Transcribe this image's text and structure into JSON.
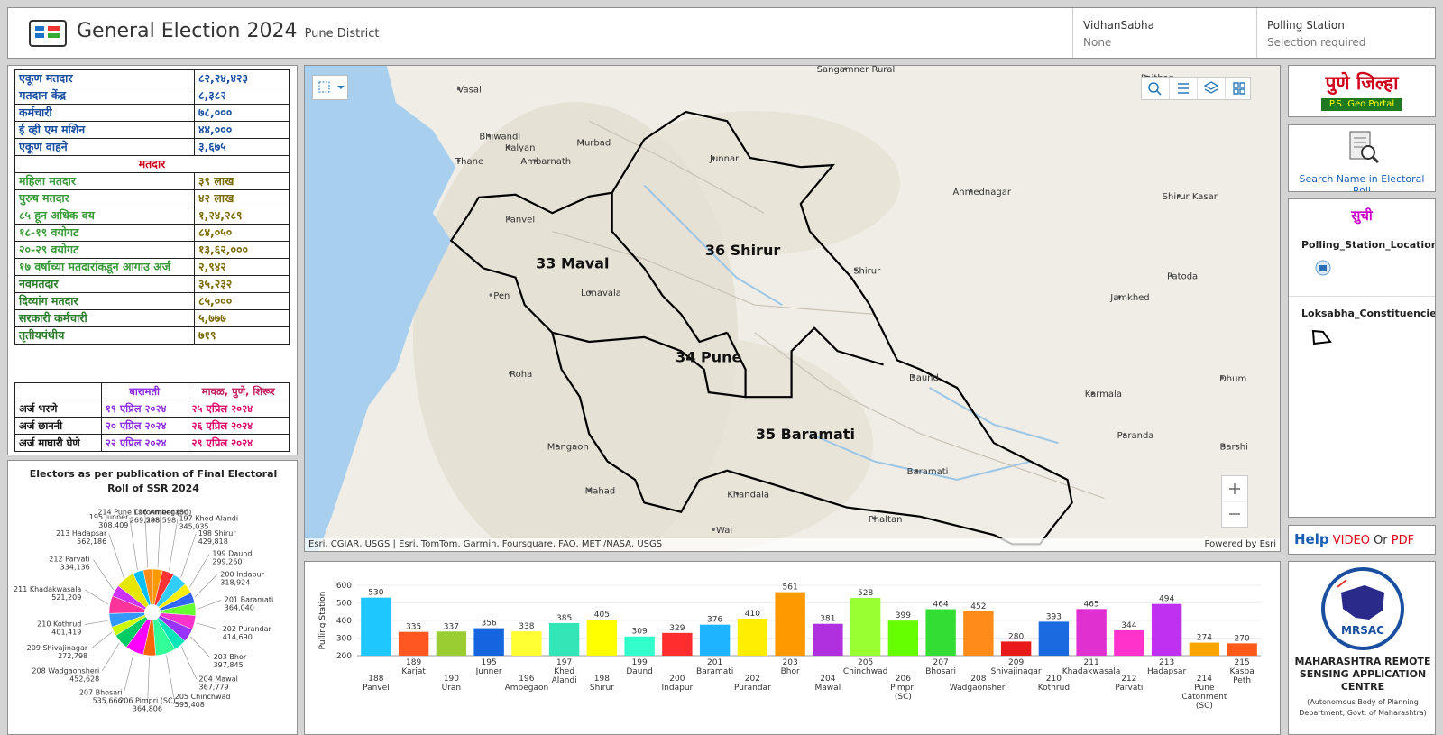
{
  "header": {
    "title": "General Election 2024",
    "subtitle": "Pune District",
    "fields": [
      {
        "label": "VidhanSabha",
        "value": "None"
      },
      {
        "label": "Polling Station",
        "value": "Selection required"
      }
    ]
  },
  "stats_table": {
    "rows": [
      [
        "एकूण मतदार",
        "८२,२४,४२३"
      ],
      [
        "मतदान केंद्र",
        "८,३८२"
      ],
      [
        "कर्मचारी",
        "७८,०००"
      ],
      [
        "ई व्ही एम मशिन",
        "४४,०००"
      ],
      [
        "एकूण वाहने",
        "३,६७५"
      ],
      [
        "मतदार"
      ],
      [
        "महिला मतदार",
        "३९ लाख"
      ],
      [
        "पुरुष मतदार",
        "४२ लाख"
      ],
      [
        "८५ हून अधिक वय",
        "१,२४,२८९"
      ],
      [
        "१८-१९ वयोगट",
        "८४,०५०"
      ],
      [
        "२०-२९ वयोगट",
        "१३,६२,०००"
      ],
      [
        "१७ वर्षाच्या मतदारांकडून आगाउ अर्ज",
        "२,९४२"
      ],
      [
        "नवमतदार",
        "३५,२३२"
      ],
      [
        "दिव्यांग मतदार",
        "८५,०००"
      ],
      [
        "सरकारी कर्मचारी",
        "५,७७७"
      ],
      [
        "तृतीयपंथीय",
        "७१९"
      ]
    ]
  },
  "schedule_table": {
    "columns": [
      "बारामती",
      "मावळ, पुणे, शिरूर"
    ],
    "rows": [
      [
        "अर्ज भरणे",
        "१९ एप्रिल २०२४",
        "२५ एप्रिल २०२४"
      ],
      [
        "अर्ज छाननी",
        "२० एप्रिल २०२४",
        "२६ एप्रिल २०२४"
      ],
      [
        "अर्ज माघारी घेणे",
        "२२ एप्रिल २०२४",
        "२९ एप्रिल २०२४"
      ]
    ]
  },
  "map": {
    "constituencies": [
      "33 Maval",
      "36 Shirur",
      "34 Pune",
      "35 Baramati"
    ],
    "places": [
      "Sangamner Rural",
      "Paithan",
      "Vasai",
      "Bhiwandi",
      "Kalyan",
      "Murbad",
      "Ambarnath",
      "Thane",
      "Junnar",
      "Ahmednagar",
      "Shirur Kasar",
      "Panvel",
      "Shirur",
      "Patoda",
      "Jamkhed",
      "Pen",
      "Lonavala",
      "Roha",
      "Daund",
      "Dhum",
      "Karmala",
      "Paranda",
      "Barshi",
      "Mangaon",
      "Baramati",
      "Mahad",
      "Khandala",
      "Phaltan",
      "Wai"
    ],
    "attribution": "Esri, CGIAR, USGS | Esri, TomTom, Garmin, Foursquare, FAO, METI/NASA, USGS",
    "powered_by": "Powered by Esri"
  },
  "sidebar": {
    "district": "पुणे जिल्हा",
    "portal": "P.S. Geo Portal",
    "search": "Search Name in Electoral Roll",
    "list_title": "सुची",
    "layers": [
      "Polling_Station_Location",
      "Loksabha_Constituencies"
    ],
    "help": "Help",
    "video": "VIDEO",
    "or": "Or",
    "pdf": "PDF",
    "logo_text": "MRSAC",
    "org": "MAHARASHTRA REMOTE SENSING APPLICATION CENTRE",
    "org_note": "(Autonomous Body of Planning Department, Govt. of Maharashtra)"
  },
  "chart_data": [
    {
      "type": "pie",
      "title": "Electors as per publication of  Final Electoral Roll of SSR 2024",
      "categories": [
        "196 Ambegaon",
        "197 Khed Alandi",
        "198 Shirur",
        "199 Daund",
        "200 Indapur",
        "201 Baramati",
        "202 Purandar",
        "203 Bhor",
        "204 Mawal",
        "205 Chinchwad",
        "206 Pimpri (SC)",
        "207 Bhosari",
        "208 Wadgaonsheri",
        "209 Shivajinagar",
        "210 Kothrud",
        "211 Khadakwasala",
        "212 Parvati",
        "213 Hadapsar",
        "195 Junner",
        "214 Pune Catonment (SC)"
      ],
      "values": [
        298598,
        345035,
        429818,
        299260,
        318924,
        364040,
        414690,
        397845,
        367779,
        595408,
        364806,
        535666,
        452628,
        272798,
        401419,
        521209,
        334136,
        562186,
        308409,
        269588
      ],
      "value_labels": [
        "298,598",
        "345,035",
        "429,818",
        "299,260",
        "318,924",
        "364,040",
        "414,690",
        "397,845",
        "367,779",
        "595,408",
        "364,806",
        "535,666",
        "452,628",
        "272,798",
        "401,419",
        "521,209",
        "334,136",
        "562,186",
        "308,409",
        "269,588"
      ],
      "colors": [
        "#ff9900",
        "#ff3333",
        "#33ccff",
        "#ffee00",
        "#3366ff",
        "#66ff33",
        "#ff33cc",
        "#9933ff",
        "#00e6b8",
        "#33ff99",
        "#ff6600",
        "#ff00ff",
        "#00cc66",
        "#ccff00",
        "#3399ff",
        "#ff3399",
        "#cc33ff",
        "#e6e600",
        "#00bfff",
        "#ff8c1a"
      ]
    },
    {
      "type": "bar",
      "ylabel": "Pulling Station",
      "ylim": [
        200,
        600
      ],
      "yticks": [
        200,
        300,
        400,
        500,
        600
      ],
      "grid": true,
      "categories": [
        [
          "188",
          "Panvel"
        ],
        [
          "189",
          "Karjat"
        ],
        [
          "190",
          "Uran"
        ],
        [
          "195",
          "Junner"
        ],
        [
          "196",
          "Ambegaon"
        ],
        [
          "197",
          "Khed",
          "Alandi"
        ],
        [
          "198",
          "Shirur"
        ],
        [
          "199",
          "Daund"
        ],
        [
          "200",
          "Indapur"
        ],
        [
          "201",
          "Baramati"
        ],
        [
          "202",
          "Purandar"
        ],
        [
          "203",
          "Bhor"
        ],
        [
          "204",
          "Mawal"
        ],
        [
          "205",
          "Chinchwad"
        ],
        [
          "206",
          "Pimpri",
          "(SC)"
        ],
        [
          "207",
          "Bhosari"
        ],
        [
          "208",
          "Wadgaonsheri"
        ],
        [
          "209",
          "Shivajinagar"
        ],
        [
          "210",
          "Kothrud"
        ],
        [
          "211",
          "Khadakwasala"
        ],
        [
          "212",
          "Parvati"
        ],
        [
          "213",
          "Hadapsar"
        ],
        [
          "214",
          "Pune",
          "Catonment",
          "(SC)"
        ],
        [
          "215",
          "Kasba",
          "Peth"
        ]
      ],
      "values": [
        530,
        335,
        337,
        356,
        338,
        385,
        405,
        309,
        329,
        376,
        410,
        561,
        381,
        528,
        399,
        464,
        452,
        280,
        393,
        465,
        344,
        494,
        274,
        270
      ],
      "colors": [
        "#1ec8ff",
        "#ff5722",
        "#9acd32",
        "#1565e0",
        "#ffff33",
        "#33e6b8",
        "#ffff00",
        "#33ffcc",
        "#ff2d2d",
        "#1eb4ff",
        "#ffee00",
        "#ff9900",
        "#b030e0",
        "#99ff33",
        "#66ff00",
        "#33dd33",
        "#ff8c1a",
        "#e8191a",
        "#1a6be0",
        "#e030d0",
        "#ff33cc",
        "#c030f0",
        "#ffa500",
        "#ff5a1a"
      ]
    }
  ]
}
